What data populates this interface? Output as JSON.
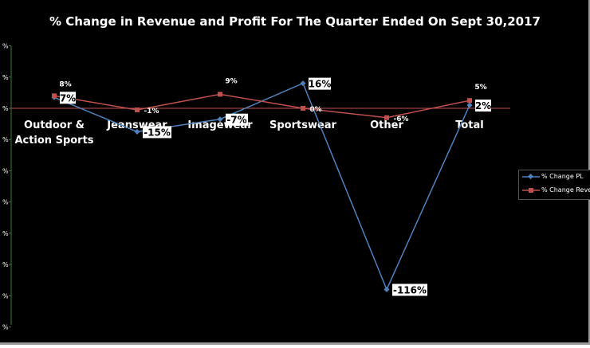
{
  "colors": {
    "pl": "#4f81bd",
    "revenue": "#c0504d",
    "zero_line": "#c0504d",
    "axis": "#3a7a3a"
  },
  "chart_data": {
    "type": "line",
    "title": "% Change in Revenue and Profit For The Quarter Ended On Sept 30,2017",
    "categories": [
      "Outdoor & Action Sports",
      "Jeanswear",
      "Imagewear",
      "Sportswear",
      "Other",
      "Total"
    ],
    "series": [
      {
        "name": "% Change PL",
        "values": [
          7,
          -15,
          -7,
          16,
          -116,
          2
        ],
        "labels": [
          "7%",
          "-15%",
          "-7%",
          "16%",
          "-116%",
          "2%"
        ]
      },
      {
        "name": "% Change Reve",
        "values": [
          8,
          -1,
          9,
          0,
          -6,
          5
        ],
        "labels": [
          "8%",
          "-1%",
          "9%",
          "0%",
          "-6%",
          "5%"
        ]
      }
    ],
    "ylim": [
      -140,
      40
    ],
    "y_tick_labels": [
      "%",
      "%",
      "%",
      "%",
      "%",
      "%",
      "%",
      "%",
      "%",
      "%"
    ],
    "legend": "right",
    "grid": false
  }
}
